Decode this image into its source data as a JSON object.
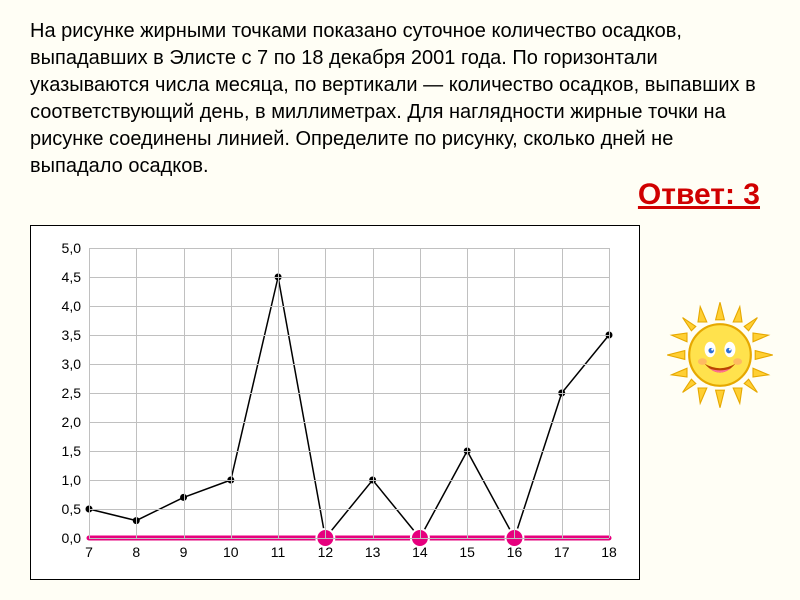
{
  "problem_text": "На рисунке жирными точками показано суточное количество осадков, выпадавших в Элисте с 7 по 18 декабря 2001 года. По горизонтали указываются числа месяца, по вертикали — количество осадков, выпавших в соответствующий день, в миллиметрах. Для наглядности жирные точки на рисунке соединены линией. Определите по рисунку, сколько дней не выпадало осадков.",
  "answer_label": "Ответ: 3",
  "chart": {
    "type": "line",
    "x_values": [
      7,
      8,
      9,
      10,
      11,
      12,
      13,
      14,
      15,
      16,
      17,
      18
    ],
    "y_values": [
      0.5,
      0.3,
      0.7,
      1.0,
      4.5,
      0.0,
      1.0,
      0.0,
      1.5,
      0.0,
      2.5,
      3.5
    ],
    "ylim": [
      0.0,
      5.0
    ],
    "ytick_step": 0.5,
    "y_labels": [
      "0,0",
      "0,5",
      "1,0",
      "1,5",
      "2,0",
      "2,5",
      "3,0",
      "3,5",
      "4,0",
      "4,5",
      "5,0"
    ],
    "xlim": [
      7,
      18
    ],
    "x_labels": [
      "7",
      "8",
      "9",
      "10",
      "11",
      "12",
      "13",
      "14",
      "15",
      "16",
      "17",
      "18"
    ],
    "line_color": "#000000",
    "line_width": 1.5,
    "marker_color": "#000000",
    "marker_radius": 3.5,
    "grid_color": "#c0c0c0",
    "background_color": "#ffffff",
    "highlight_color": "#e6007e",
    "highlight_dot_radius": 9,
    "zero_day_indices": [
      5,
      7,
      9
    ],
    "label_fontsize": 14
  },
  "icons": {
    "sun": "sun-smiley"
  },
  "colors": {
    "page_bg": "#fffef5",
    "text": "#000000",
    "answer": "#d00000"
  }
}
